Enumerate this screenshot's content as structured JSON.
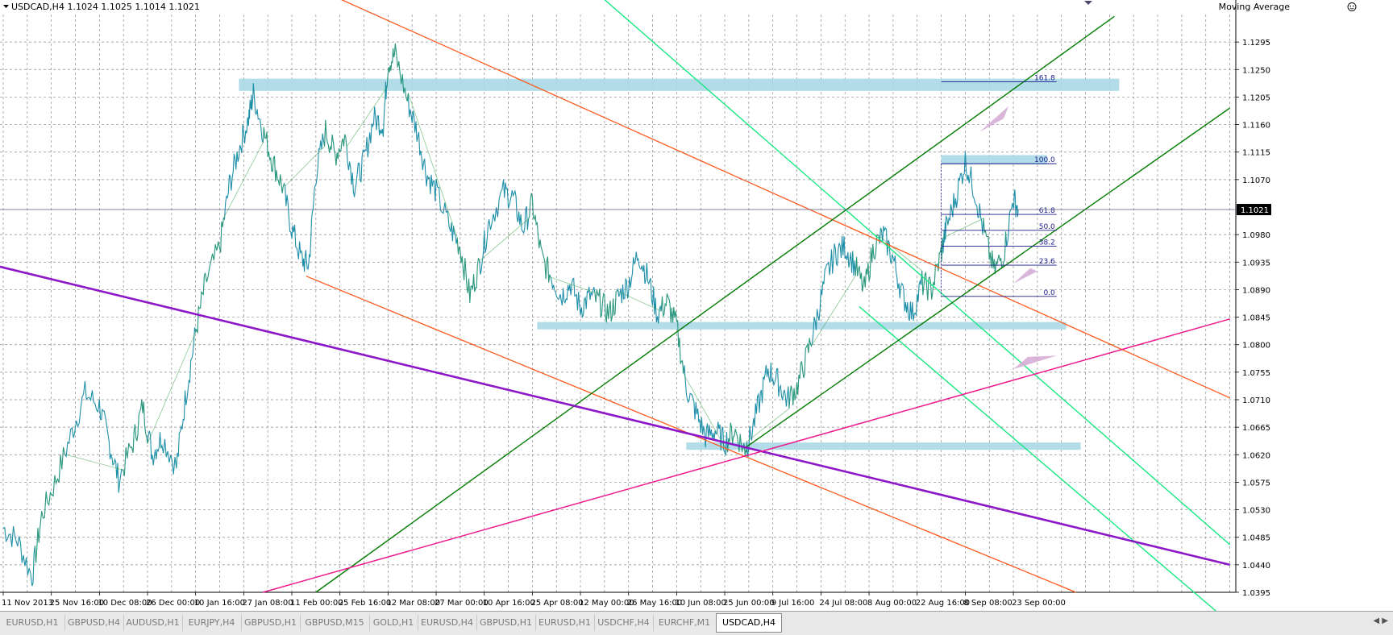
{
  "header": {
    "symbol_info": "USDCAD,H4  1.1024 1.1025 1.1014 1.1021",
    "indicator_label": "Moving Average"
  },
  "tabs": [
    {
      "label": "EURUSD,H1",
      "active": false
    },
    {
      "label": "GBPUSD,H4",
      "active": false
    },
    {
      "label": "AUDUSD,H1",
      "active": false
    },
    {
      "label": "EURJPY,H4",
      "active": false
    },
    {
      "label": "GBPUSD,H1",
      "active": false
    },
    {
      "label": "GBPUSD,M15",
      "active": false
    },
    {
      "label": "GOLD,H1",
      "active": false
    },
    {
      "label": "EURUSD,H4",
      "active": false
    },
    {
      "label": "GBPUSD,H1",
      "active": false
    },
    {
      "label": "EURUSD,H1",
      "active": false
    },
    {
      "label": "USDCHF,H4",
      "active": false
    },
    {
      "label": "EURCHF,M1",
      "active": false
    },
    {
      "label": "USDCAD,H4",
      "active": true
    }
  ],
  "chart_data": {
    "type": "line",
    "symbol": "USDCAD",
    "timeframe": "H4",
    "current_price": "1.1021",
    "ylim": [
      1.0395,
      1.134
    ],
    "y_ticks": [
      "1.1295",
      "1.1250",
      "1.1205",
      "1.1160",
      "1.1115",
      "1.1070",
      "1.0980",
      "1.0935",
      "1.0890",
      "1.0845",
      "1.0800",
      "1.0755",
      "1.0710",
      "1.0665",
      "1.0620",
      "1.0575",
      "1.0530",
      "1.0485",
      "1.0440",
      "1.0395"
    ],
    "x_ticks": [
      "11 Nov 2013",
      "25 Nov 16:00",
      "10 Dec 08:00",
      "26 Dec 00:00",
      "10 Jan 16:00",
      "27 Jan 08:00",
      "11 Feb 00:00",
      "25 Feb 16:00",
      "12 Mar 08:00",
      "27 Mar 00:00",
      "10 Apr 16:00",
      "25 Apr 08:00",
      "12 May 00:00",
      "26 May 16:00",
      "10 Jun 08:00",
      "25 Jun 00:00",
      "9 Jul 16:00",
      "24 Jul 08:00",
      "8 Aug 00:00",
      "22 Aug 16:00",
      "8 Sep 08:00",
      "23 Sep 00:00"
    ],
    "x_tick_index": [
      0,
      1,
      2,
      3,
      4,
      5,
      6,
      7,
      8,
      9,
      10,
      11,
      12,
      13,
      14,
      15,
      16,
      17,
      18,
      19,
      20,
      21
    ],
    "price_path": [
      [
        0.0,
        1.05
      ],
      [
        0.3,
        1.048
      ],
      [
        0.6,
        1.042
      ],
      [
        0.8,
        1.052
      ],
      [
        1.1,
        1.058
      ],
      [
        1.4,
        1.065
      ],
      [
        1.7,
        1.072
      ],
      [
        2.0,
        1.07
      ],
      [
        2.2,
        1.064
      ],
      [
        2.4,
        1.058
      ],
      [
        2.7,
        1.064
      ],
      [
        2.9,
        1.07
      ],
      [
        3.1,
        1.062
      ],
      [
        3.3,
        1.065
      ],
      [
        3.6,
        1.06
      ],
      [
        3.8,
        1.072
      ],
      [
        4.0,
        1.082
      ],
      [
        4.2,
        1.09
      ],
      [
        4.5,
        1.096
      ],
      [
        4.7,
        1.106
      ],
      [
        4.9,
        1.112
      ],
      [
        5.1,
        1.117
      ],
      [
        5.2,
        1.121
      ],
      [
        5.4,
        1.115
      ],
      [
        5.6,
        1.11
      ],
      [
        5.8,
        1.106
      ],
      [
        6.0,
        1.099
      ],
      [
        6.2,
        1.094
      ],
      [
        6.35,
        1.093
      ],
      [
        6.5,
        1.108
      ],
      [
        6.7,
        1.115
      ],
      [
        6.9,
        1.111
      ],
      [
        7.1,
        1.114
      ],
      [
        7.3,
        1.106
      ],
      [
        7.5,
        1.11
      ],
      [
        7.7,
        1.117
      ],
      [
        7.9,
        1.116
      ],
      [
        8.0,
        1.126
      ],
      [
        8.15,
        1.1275
      ],
      [
        8.4,
        1.12
      ],
      [
        8.6,
        1.115
      ],
      [
        8.8,
        1.108
      ],
      [
        9.0,
        1.105
      ],
      [
        9.3,
        1.099
      ],
      [
        9.5,
        1.096
      ],
      [
        9.7,
        1.088
      ],
      [
        9.9,
        1.093
      ],
      [
        10.1,
        1.1
      ],
      [
        10.4,
        1.105
      ],
      [
        10.6,
        1.104
      ],
      [
        10.8,
        1.099
      ],
      [
        11.0,
        1.103
      ],
      [
        11.2,
        1.094
      ],
      [
        11.4,
        1.091
      ],
      [
        11.6,
        1.088
      ],
      [
        11.8,
        1.09
      ],
      [
        12.0,
        1.086
      ],
      [
        12.2,
        1.088
      ],
      [
        12.4,
        1.087
      ],
      [
        12.6,
        1.085
      ],
      [
        12.8,
        1.088
      ],
      [
        13.0,
        1.09
      ],
      [
        13.2,
        1.095
      ],
      [
        13.4,
        1.091
      ],
      [
        13.6,
        1.085
      ],
      [
        13.8,
        1.087
      ],
      [
        14.0,
        1.083
      ],
      [
        14.2,
        1.073
      ],
      [
        14.4,
        1.069
      ],
      [
        14.6,
        1.065
      ],
      [
        14.8,
        1.066
      ],
      [
        15.0,
        1.064
      ],
      [
        15.2,
        1.066
      ],
      [
        15.4,
        1.063
      ],
      [
        15.5,
        1.064
      ],
      [
        15.7,
        1.07
      ],
      [
        15.9,
        1.076
      ],
      [
        16.1,
        1.074
      ],
      [
        16.3,
        1.071
      ],
      [
        16.5,
        1.073
      ],
      [
        16.7,
        1.078
      ],
      [
        16.9,
        1.084
      ],
      [
        17.1,
        1.091
      ],
      [
        17.3,
        1.095
      ],
      [
        17.5,
        1.096
      ],
      [
        17.7,
        1.093
      ],
      [
        17.9,
        1.089
      ],
      [
        18.1,
        1.096
      ],
      [
        18.3,
        1.098
      ],
      [
        18.5,
        1.094
      ],
      [
        18.7,
        1.088
      ],
      [
        18.9,
        1.085
      ],
      [
        19.1,
        1.09
      ],
      [
        19.3,
        1.089
      ],
      [
        19.5,
        1.095
      ],
      [
        19.6,
        1.099
      ],
      [
        19.8,
        1.104
      ],
      [
        20.0,
        1.11
      ],
      [
        20.2,
        1.105
      ],
      [
        20.4,
        1.098
      ],
      [
        20.6,
        1.092
      ],
      [
        20.8,
        1.095
      ],
      [
        21.0,
        1.104
      ],
      [
        21.1,
        1.1021
      ]
    ],
    "zones": [
      {
        "x0": 4.9,
        "x1": 23.2,
        "y0": 1.1215,
        "y1": 1.1235
      },
      {
        "x0": 19.5,
        "x1": 21.7,
        "y0": 1.1095,
        "y1": 1.111
      },
      {
        "x0": 11.1,
        "x1": 22.1,
        "y0": 1.0825,
        "y1": 1.0837
      },
      {
        "x0": 14.2,
        "x1": 22.4,
        "y0": 1.0628,
        "y1": 1.064
      }
    ],
    "trend_lines": [
      {
        "color": "#ff5a1e",
        "width": 1.3,
        "p1": [
          6.5,
          1.1383
        ],
        "p2": [
          25.5,
          1.0713
        ]
      },
      {
        "color": "#ff5a1e",
        "width": 1.3,
        "p1": [
          6.3,
          1.0912
        ],
        "p2": [
          22.3,
          1.0395
        ]
      },
      {
        "color": "#18e882",
        "width": 1.4,
        "p1": [
          12.2,
          1.1385
        ],
        "p2": [
          25.5,
          1.0473
        ]
      },
      {
        "color": "#18e882",
        "width": 1.4,
        "p1": [
          17.8,
          1.0862
        ],
        "p2": [
          25.5,
          1.0345
        ]
      },
      {
        "color": "#007a00",
        "width": 1.4,
        "p1": [
          6.5,
          1.0395
        ],
        "p2": [
          23.1,
          1.1337
        ]
      },
      {
        "color": "#007a00",
        "width": 1.4,
        "p1": [
          15.4,
          1.063
        ],
        "p2": [
          25.5,
          1.1187
        ]
      },
      {
        "color": "#8c16c8",
        "width": 2.6,
        "p1": [
          -0.2,
          1.093
        ],
        "p2": [
          25.5,
          1.044
        ]
      },
      {
        "color": "#ee1a8e",
        "width": 1.5,
        "p1": [
          5.4,
          1.0395
        ],
        "p2": [
          25.5,
          1.0842
        ]
      }
    ],
    "fib_levels": [
      {
        "label": "161.8",
        "value": 1.123
      },
      {
        "label": "100.0",
        "value": 1.1096
      },
      {
        "label": "61.8",
        "value": 1.1013
      },
      {
        "label": "50.0",
        "value": 1.0987
      },
      {
        "label": "38.2",
        "value": 1.0961
      },
      {
        "label": "23.6",
        "value": 1.093
      },
      {
        "label": "0.0",
        "value": 1.0879
      }
    ],
    "fib_x": [
      19.5,
      21.9
    ],
    "projections": [
      {
        "color": "#d4a8d4",
        "points": [
          [
            20.3,
            1.1148
          ],
          [
            20.8,
            1.117
          ],
          [
            20.9,
            1.119
          ]
        ]
      },
      {
        "color": "#d4a8d4",
        "points": [
          [
            21.0,
            1.09
          ],
          [
            21.35,
            1.0925
          ],
          [
            21.5,
            1.092
          ]
        ]
      },
      {
        "color": "#d4a8d4",
        "points": [
          [
            21.0,
            1.076
          ],
          [
            21.3,
            1.078
          ],
          [
            21.9,
            1.0782
          ]
        ]
      }
    ]
  }
}
